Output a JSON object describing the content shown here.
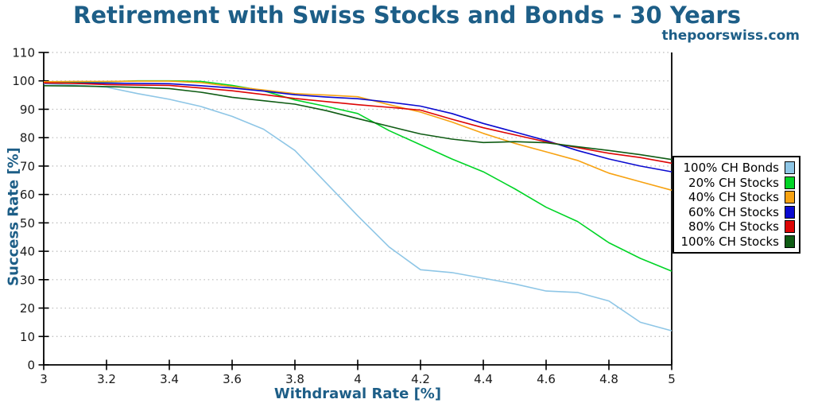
{
  "page": {
    "watermark": "thepoorswiss.com"
  },
  "chart_data": {
    "type": "line",
    "title": "Retirement with Swiss Stocks and Bonds - 30 Years",
    "xlabel": "Withdrawal Rate [%]",
    "ylabel": "Success Rate [%]",
    "xlim": [
      3,
      5
    ],
    "ylim": [
      0,
      110
    ],
    "xticks": [
      3,
      3.2,
      3.4,
      3.6,
      3.8,
      4,
      4.2,
      4.4,
      4.6,
      4.8,
      5
    ],
    "xtick_labels": [
      "3",
      "3.2",
      "3.4",
      "3.6",
      "3.8",
      "4",
      "4.2",
      "4.4",
      "4.6",
      "4.8",
      "5"
    ],
    "yticks": [
      0,
      10,
      20,
      30,
      40,
      50,
      60,
      70,
      80,
      90,
      100,
      110
    ],
    "ytick_labels": [
      "0",
      "10",
      "20",
      "30",
      "40",
      "50",
      "60",
      "70",
      "80",
      "90",
      "100",
      "110"
    ],
    "grid": "horizontal dotted gray",
    "legend_position": "right outside",
    "x": [
      3.0,
      3.1,
      3.2,
      3.3,
      3.4,
      3.5,
      3.6,
      3.7,
      3.8,
      3.9,
      4.0,
      4.1,
      4.2,
      4.3,
      4.4,
      4.5,
      4.6,
      4.7,
      4.8,
      4.9,
      5.0
    ],
    "series": [
      {
        "name": "100% CH Bonds",
        "color": "#8ec6e6",
        "values": [
          99,
          98.5,
          97.8,
          95.5,
          93.5,
          91,
          87.5,
          83,
          75.5,
          64,
          52.5,
          41.5,
          33.5,
          32.5,
          30.5,
          28.5,
          26,
          25.5,
          22.5,
          15,
          12
        ]
      },
      {
        "name": "20% CH Stocks",
        "color": "#00d426",
        "values": [
          99.5,
          99.5,
          99.7,
          100,
          100,
          99.8,
          98.4,
          96.5,
          93.3,
          91,
          88.5,
          82.5,
          77.5,
          72.5,
          68,
          62,
          55.5,
          50.5,
          43,
          37.5,
          33
        ]
      },
      {
        "name": "40% CH Stocks",
        "color": "#f7a211",
        "values": [
          99.7,
          99.8,
          99.8,
          99.9,
          99.9,
          99.4,
          98,
          96.8,
          95.5,
          95,
          94.4,
          91.6,
          89,
          85.5,
          81.5,
          78,
          75,
          72,
          67.5,
          64.5,
          61.5
        ]
      },
      {
        "name": "60% CH Stocks",
        "color": "#0a0ad0",
        "values": [
          99.2,
          99.2,
          99.2,
          99.1,
          99,
          98.3,
          97.5,
          96.4,
          95.1,
          94.3,
          93.7,
          92.5,
          91.1,
          88.5,
          85,
          82,
          79,
          75.5,
          72.5,
          70,
          68
        ]
      },
      {
        "name": "80% CH Stocks",
        "color": "#dd0505",
        "values": [
          99.3,
          99.1,
          98.7,
          98.5,
          98.4,
          97.5,
          96.5,
          95.2,
          93.8,
          92.7,
          91.6,
          90.7,
          89.7,
          86.5,
          83.5,
          81,
          78.5,
          76.5,
          74.5,
          73,
          71
        ]
      },
      {
        "name": "100% CH Stocks",
        "color": "#0f5c14",
        "values": [
          98.3,
          98.2,
          98,
          97.7,
          97.3,
          96,
          94.2,
          93,
          91.8,
          89.5,
          86.7,
          84,
          81.3,
          79.5,
          78.3,
          78.6,
          78.2,
          76.8,
          75.5,
          74,
          72.3
        ]
      }
    ],
    "style": {
      "grid_color": "#b9b9b9",
      "axis_color": "#000000",
      "title_color": "#1d5e87",
      "line_width": 1.6
    }
  }
}
